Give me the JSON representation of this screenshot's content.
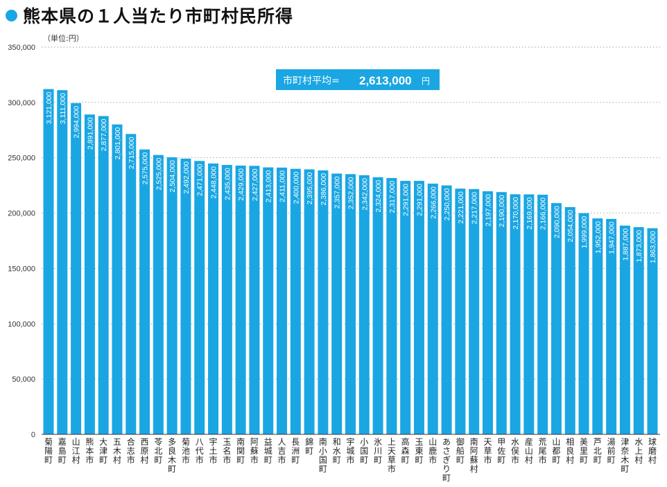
{
  "title": "熊本県の１人当たり市町村民所得",
  "chart_data": {
    "type": "bar",
    "unit_label": "（単位:円）",
    "ylim": [
      0,
      350000
    ],
    "yticks": [
      0,
      50000,
      100000,
      150000,
      200000,
      250000,
      300000,
      350000
    ],
    "ytick_labels": [
      "0",
      "50,000",
      "100,000",
      "150,000",
      "200,000",
      "250,000",
      "300,000",
      "350,000"
    ],
    "grid": true,
    "average": {
      "label": "市町村平均=",
      "value": 2613000,
      "value_text": "2,613,000",
      "unit": "円"
    },
    "categories": [
      "菊陽町",
      "嘉島町",
      "山江村",
      "熊本市",
      "大津町",
      "五木村",
      "合志市",
      "西原村",
      "苓北町",
      "多良木町",
      "菊池市",
      "八代市",
      "宇土市",
      "玉名市",
      "南関町",
      "阿蘇市",
      "益城町",
      "人吉市",
      "長洲町",
      "錦町",
      "南小国町",
      "和水町",
      "宇城市",
      "小国町",
      "氷川町",
      "上天草市",
      "高森町",
      "玉東町",
      "山鹿市",
      "あさぎり町",
      "御船町",
      "南阿蘇村",
      "天草市",
      "甲佐町",
      "水俣市",
      "産山村",
      "荒尾市",
      "山都町",
      "相良村",
      "美里町",
      "芦北町",
      "湯前町",
      "津奈木町",
      "水上村",
      "球磨村"
    ],
    "values": [
      3121000,
      3111000,
      2994000,
      2891000,
      2877000,
      2801000,
      2715000,
      2575000,
      2525000,
      2504000,
      2492000,
      2471000,
      2448000,
      2435000,
      2429000,
      2427000,
      2413000,
      2411000,
      2400000,
      2395000,
      2386000,
      2357000,
      2352000,
      2342000,
      2324000,
      2317000,
      2291000,
      2291000,
      2266000,
      2250000,
      2221000,
      2217000,
      2197000,
      2190000,
      2170000,
      2169000,
      2166000,
      2090000,
      2054000,
      1999000,
      1952000,
      1947000,
      1887000,
      1873000,
      1863000
    ],
    "value_labels": [
      "3,121,000",
      "3,111,000",
      "2,994,000",
      "2,891,000",
      "2,877,000",
      "2,801,000",
      "2,715,000",
      "2,575,000",
      "2,525,000",
      "2,504,000",
      "2,492,000",
      "2,471,000",
      "2,448,000",
      "2,435,000",
      "2,429,000",
      "2,427,000",
      "2,413,000",
      "2,411,000",
      "2,400,000",
      "2,395,000",
      "2,386,000",
      "2,357,000",
      "2,352,000",
      "2,342,000",
      "2,324,000",
      "2,317,000",
      "2,291,000",
      "2,291,000",
      "2,266,000",
      "2,250,000",
      "2,221,000",
      "2,217,000",
      "2,197,000",
      "2,190,000",
      "2,170,000",
      "2,169,000",
      "2,166,000",
      "2,090,000",
      "2,054,000",
      "1,999,000",
      "1,952,000",
      "1,947,000",
      "1,887,000",
      "1,873,000",
      "1,863,000"
    ],
    "bar_color": "#1aa6e3"
  }
}
